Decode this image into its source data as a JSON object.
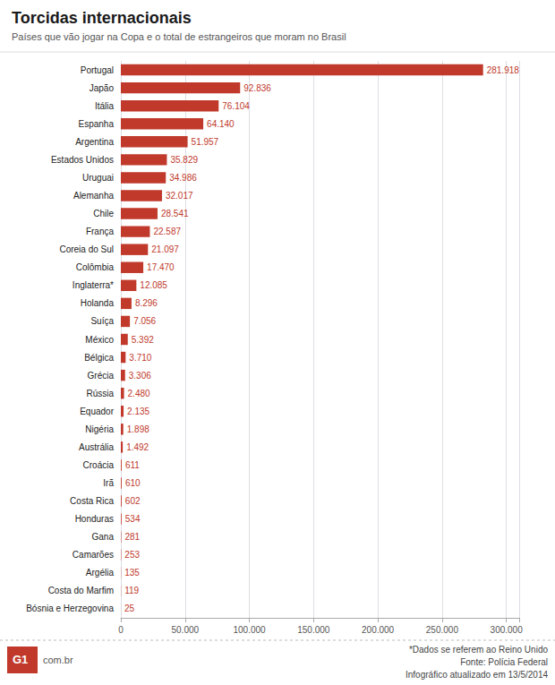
{
  "chart_data": {
    "type": "bar",
    "orientation": "horizontal",
    "title": "Torcidas internacionais",
    "subtitle": "Países que vão jogar na Copa e o total de estrangeiros que moram no Brasil",
    "categories": [
      "Portugal",
      "Japão",
      "Itália",
      "Espanha",
      "Argentina",
      "Estados Unidos",
      "Uruguai",
      "Alemanha",
      "Chile",
      "França",
      "Coreia do Sul",
      "Colômbia",
      "Inglaterra*",
      "Holanda",
      "Suíça",
      "México",
      "Bélgica",
      "Grécia",
      "Rússia",
      "Equador",
      "Nigéria",
      "Austrália",
      "Croácia",
      "Irã",
      "Costa Rica",
      "Honduras",
      "Gana",
      "Camarões",
      "Argélia",
      "Costa do Marfim",
      "Bósnia e Herzegovina"
    ],
    "values": [
      281918,
      92836,
      76104,
      64140,
      51957,
      35829,
      34986,
      32017,
      28541,
      22587,
      21097,
      17470,
      12085,
      8296,
      7056,
      5392,
      3710,
      3306,
      2480,
      2135,
      1898,
      1492,
      611,
      610,
      602,
      534,
      281,
      253,
      135,
      119,
      25
    ],
    "value_labels": [
      "281.918",
      "92.836",
      "76.104",
      "64.140",
      "51.957",
      "35.829",
      "34.986",
      "32.017",
      "28.541",
      "22.587",
      "21.097",
      "17.470",
      "12.085",
      "8.296",
      "7.056",
      "5.392",
      "3.710",
      "3.306",
      "2.480",
      "2.135",
      "1.898",
      "1.492",
      "611",
      "610",
      "602",
      "534",
      "281",
      "253",
      "135",
      "119",
      "25"
    ],
    "color": "#c0392b",
    "data_labels": true,
    "xlim": [
      0,
      310000
    ],
    "xticks": [
      0,
      {
        "value": 50000,
        "label": "50.000"
      },
      {
        "value": 100000,
        "label": "100.000"
      },
      {
        "value": 150000,
        "label": "150.000"
      },
      {
        "value": 200000,
        "label": "200.000"
      },
      {
        "value": 250000,
        "label": "250.000"
      },
      {
        "value": 300000,
        "label": "300.000"
      }
    ],
    "grid": true,
    "annotations": [
      "G1",
      "com.br",
      "*Dados se referem ao Reino Unido",
      "Fonte: Polícia Federal",
      "Infográfico atualizado em 13/5/2014"
    ]
  }
}
